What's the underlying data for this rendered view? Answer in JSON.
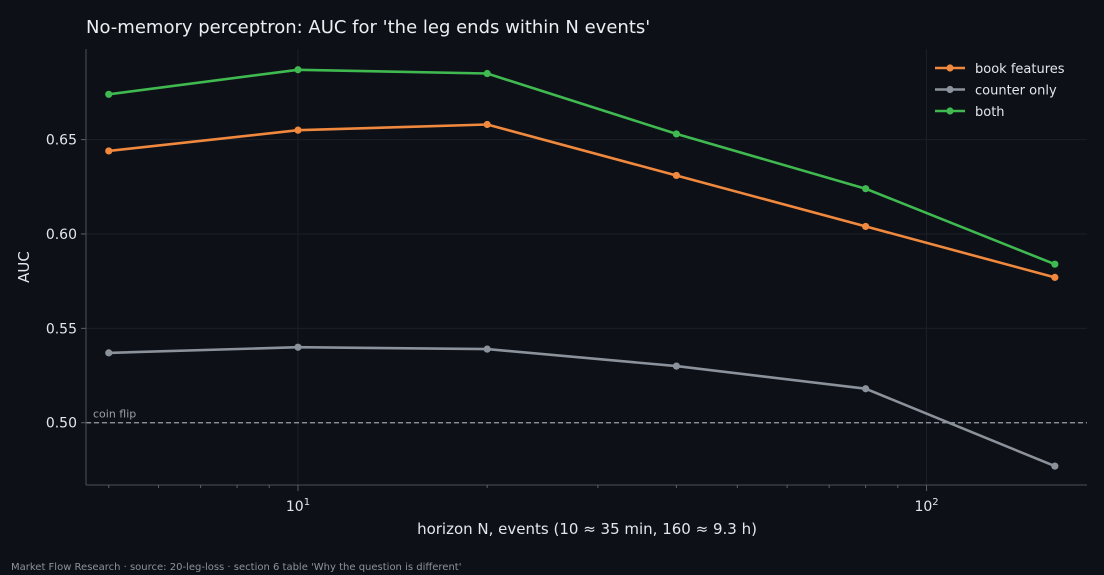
{
  "chart_data": {
    "type": "line",
    "title": "No-memory perceptron: AUC for 'the leg ends within N events'",
    "xlabel": "horizon N, events (10 ≈ 35 min, 160 ≈ 9.3 h)",
    "ylabel": "AUC",
    "xscale": "log",
    "xlim": [
      4.6,
      180
    ],
    "ylim": [
      0.467,
      0.698
    ],
    "x": [
      5,
      10,
      20,
      40,
      80,
      160
    ],
    "yticks": [
      0.5,
      0.55,
      0.6,
      0.65
    ],
    "ytick_labels": [
      "0.50",
      "0.55",
      "0.60",
      "0.65"
    ],
    "xticks": [
      10,
      100
    ],
    "xtick_base": "10",
    "xtick_exponents": [
      "1",
      "2"
    ],
    "series": [
      {
        "name": "book features",
        "color": "#f0883e",
        "values": [
          0.644,
          0.655,
          0.658,
          0.631,
          0.604,
          0.577
        ]
      },
      {
        "name": "counter only",
        "color": "#8b929b",
        "values": [
          0.537,
          0.54,
          0.539,
          0.53,
          0.518,
          0.477
        ]
      },
      {
        "name": "both",
        "color": "#3fb950",
        "values": [
          0.674,
          0.687,
          0.685,
          0.653,
          0.624,
          0.584
        ]
      }
    ],
    "reference_line": {
      "y": 0.5,
      "label": "coin flip",
      "color": "#9aa0a8"
    },
    "grid": true,
    "legend_position": "top-right",
    "footer": "Market Flow Research · source: 20-leg-loss · section 6 table 'Why the question is different'"
  }
}
